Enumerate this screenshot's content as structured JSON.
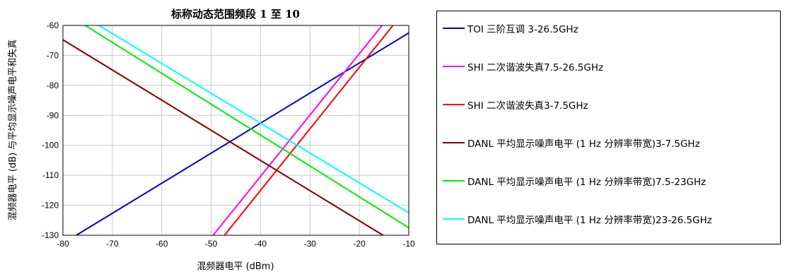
{
  "chart_data": {
    "type": "line",
    "title": "标称动态范围频段 1 至 10",
    "xlabel": "混频器电平 (dBm)",
    "ylabel": "混频器电平 (dB) 与平均显示噪声电平和失真",
    "xlim": [
      -80,
      -10
    ],
    "ylim": [
      -130,
      -60
    ],
    "xticks": [
      "-80",
      "-70",
      "-60",
      "-50",
      "-40",
      "-30",
      "-20",
      "-10"
    ],
    "yticks": [
      "-60",
      "-70",
      "-80",
      "-90",
      "-100",
      "-110",
      "-120",
      "-130"
    ],
    "grid": true,
    "legend_position": "right",
    "series": [
      {
        "name": "TOI 三阶互调 3-26.5GHz",
        "color": "#0000cc",
        "x": [
          -77.3,
          -10
        ],
        "y": [
          -130,
          -62.5
        ]
      },
      {
        "name": "SHI 二次谐波失真7.5-26.5GHz",
        "color": "#ff00ff",
        "x": [
          -49.6,
          -15.4
        ],
        "y": [
          -130,
          -60
        ]
      },
      {
        "name": "SHI 二次谐波失真3-7.5GHz",
        "color": "#ff0000",
        "x": [
          -47.3,
          -13.2
        ],
        "y": [
          -130,
          -60
        ]
      },
      {
        "name": "DANL 平均显示噪声电平 (1 Hz 分辨率带宽)3-7.5GHz",
        "color": "#800000",
        "x": [
          -80,
          -15.2
        ],
        "y": [
          -64.8,
          -130
        ]
      },
      {
        "name": "DANL 平均显示噪声电平 (1 Hz 分辨率带宽)7.5-23GHz",
        "color": "#00ee00",
        "x": [
          -75.5,
          -10
        ],
        "y": [
          -60,
          -127.5
        ]
      },
      {
        "name": "DANL 平均显示噪声电平 (1 Hz 分辨率带宽)23-26.5GHz",
        "color": "#00ffff",
        "x": [
          -72.7,
          -10
        ],
        "y": [
          -60,
          -122.5
        ]
      }
    ]
  }
}
